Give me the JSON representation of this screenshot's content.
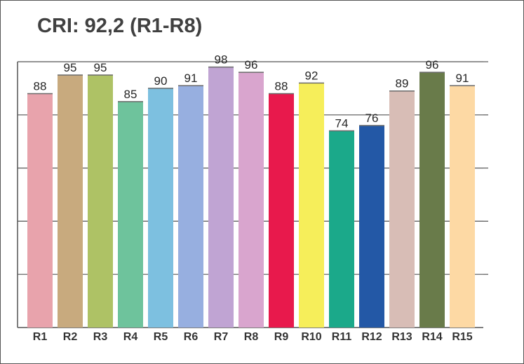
{
  "chart_data": {
    "type": "bar",
    "title": "CRI: 92,2 (R1-R8)",
    "xlabel": "",
    "ylabel": "",
    "ylim": [
      0,
      100
    ],
    "grid": true,
    "categories": [
      "R1",
      "R2",
      "R3",
      "R4",
      "R5",
      "R6",
      "R7",
      "R8",
      "R9",
      "R10",
      "R11",
      "R12",
      "R13",
      "R14",
      "R15"
    ],
    "values": [
      88,
      95,
      95,
      85,
      90,
      91,
      98,
      96,
      88,
      92,
      74,
      76,
      89,
      96,
      91
    ],
    "colors": [
      "#E8A3AC",
      "#C8AA7E",
      "#AEC265",
      "#6EC39C",
      "#7DC0E0",
      "#97AFE0",
      "#C0A4D3",
      "#D9A5CE",
      "#E8194C",
      "#F6EE5A",
      "#1BA98A",
      "#2358A6",
      "#D8BDB6",
      "#697B4A",
      "#FDD9A4"
    ],
    "data_labels": [
      "88",
      "95",
      "95",
      "85",
      "90",
      "91",
      "98",
      "96",
      "88",
      "92",
      "74",
      "76",
      "89",
      "96",
      "91"
    ]
  }
}
